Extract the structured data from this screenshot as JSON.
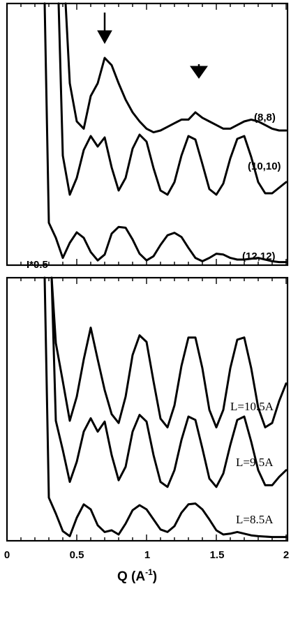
{
  "chart_data": [
    {
      "type": "line",
      "panel": "top",
      "xlim": [
        0,
        2
      ],
      "grid": false,
      "x": [
        0.05,
        0.1,
        0.15,
        0.2,
        0.25,
        0.3,
        0.35,
        0.4,
        0.45,
        0.5,
        0.55,
        0.6,
        0.65,
        0.7,
        0.75,
        0.8,
        0.85,
        0.9,
        0.95,
        1.0,
        1.05,
        1.1,
        1.15,
        1.2,
        1.25,
        1.3,
        1.35,
        1.4,
        1.45,
        1.5,
        1.55,
        1.6,
        1.65,
        1.7,
        1.75,
        1.8,
        1.85,
        1.9,
        1.95,
        2.0
      ],
      "series": [
        {
          "name": "(8,8)",
          "values": [
            null,
            null,
            null,
            null,
            null,
            null,
            null,
            null,
            0.62,
            0.2,
            0.12,
            0.48,
            0.62,
            0.9,
            0.82,
            0.62,
            0.44,
            0.3,
            0.2,
            0.12,
            0.08,
            0.1,
            0.14,
            0.18,
            0.22,
            0.22,
            0.3,
            0.24,
            0.2,
            0.16,
            0.12,
            0.12,
            0.16,
            0.2,
            0.22,
            0.2,
            0.16,
            0.12,
            0.1,
            0.1
          ]
        },
        {
          "name": "(10,10)",
          "values": [
            null,
            null,
            null,
            null,
            null,
            null,
            null,
            0.62,
            0.06,
            0.3,
            0.7,
            0.9,
            0.75,
            0.88,
            0.45,
            0.12,
            0.3,
            0.72,
            0.92,
            0.82,
            0.44,
            0.12,
            0.06,
            0.24,
            0.62,
            0.9,
            0.85,
            0.5,
            0.14,
            0.06,
            0.22,
            0.58,
            0.86,
            0.9,
            0.6,
            0.24,
            0.08,
            0.08,
            0.16,
            0.24
          ]
        },
        {
          "name": "(12,12)",
          "values": [
            null,
            null,
            null,
            null,
            null,
            0.98,
            0.62,
            0.14,
            0.5,
            0.75,
            0.62,
            0.28,
            0.08,
            0.22,
            0.72,
            0.88,
            0.86,
            0.58,
            0.24,
            0.08,
            0.18,
            0.45,
            0.68,
            0.74,
            0.64,
            0.38,
            0.14,
            0.06,
            0.14,
            0.24,
            0.22,
            0.14,
            0.1,
            0.1,
            0.12,
            0.14,
            0.1,
            0.06,
            0.04,
            0.04
          ]
        }
      ],
      "annotations": [
        "I*0.5"
      ]
    },
    {
      "type": "line",
      "panel": "bottom",
      "xlabel": "Q (A⁻¹)",
      "xlim": [
        0,
        2
      ],
      "xticks": [
        "0",
        "0.5",
        "1",
        "1.5",
        "2"
      ],
      "grid": false,
      "x": [
        0.05,
        0.1,
        0.15,
        0.2,
        0.25,
        0.3,
        0.35,
        0.4,
        0.45,
        0.5,
        0.55,
        0.6,
        0.65,
        0.7,
        0.75,
        0.8,
        0.85,
        0.9,
        0.95,
        1.0,
        1.05,
        1.1,
        1.15,
        1.2,
        1.25,
        1.3,
        1.35,
        1.4,
        1.45,
        1.5,
        1.55,
        1.6,
        1.65,
        1.7,
        1.75,
        1.8,
        1.85,
        1.9,
        1.95,
        2.0
      ],
      "series": [
        {
          "name": "L=10.5A",
          "values": [
            null,
            null,
            null,
            null,
            null,
            null,
            0.85,
            0.5,
            0.14,
            0.36,
            0.7,
            0.99,
            0.7,
            0.42,
            0.2,
            0.12,
            0.36,
            0.74,
            0.92,
            0.86,
            0.5,
            0.16,
            0.08,
            0.28,
            0.64,
            0.9,
            0.9,
            0.62,
            0.24,
            0.08,
            0.24,
            0.62,
            0.88,
            0.9,
            0.62,
            0.26,
            0.08,
            0.12,
            0.32,
            0.48
          ]
        },
        {
          "name": "L=9.5A",
          "values": [
            null,
            null,
            null,
            null,
            null,
            null,
            0.85,
            0.5,
            0.12,
            0.36,
            0.72,
            0.88,
            0.72,
            0.84,
            0.44,
            0.14,
            0.3,
            0.72,
            0.92,
            0.84,
            0.44,
            0.12,
            0.06,
            0.26,
            0.62,
            0.9,
            0.86,
            0.52,
            0.16,
            0.06,
            0.22,
            0.56,
            0.86,
            0.9,
            0.6,
            0.26,
            0.08,
            0.08,
            0.18,
            0.26
          ]
        },
        {
          "name": "L=8.5A",
          "values": [
            null,
            null,
            null,
            null,
            null,
            0.98,
            0.6,
            0.18,
            0.06,
            0.5,
            0.82,
            0.7,
            0.32,
            0.16,
            0.2,
            0.1,
            0.36,
            0.68,
            0.8,
            0.7,
            0.46,
            0.22,
            0.16,
            0.3,
            0.62,
            0.82,
            0.84,
            0.7,
            0.46,
            0.2,
            0.1,
            0.12,
            0.16,
            0.12,
            0.08,
            0.06,
            0.05,
            0.04,
            0.04,
            0.04
          ]
        }
      ]
    }
  ],
  "labels": {
    "s88": "(8,8)",
    "s1010": "(10,10)",
    "s1212": "(12,12)",
    "scale": "I*0.5",
    "l105": "L=10.5A",
    "l95": "L=9.5A",
    "l85": "L=8.5A",
    "xtick0": "0",
    "xtick1": "0.5",
    "xtick2": "1",
    "xtick3": "1.5",
    "xtick4": "2",
    "xaxis_main": "Q (A",
    "xaxis_sup": "-1",
    "xaxis_close": ")"
  }
}
